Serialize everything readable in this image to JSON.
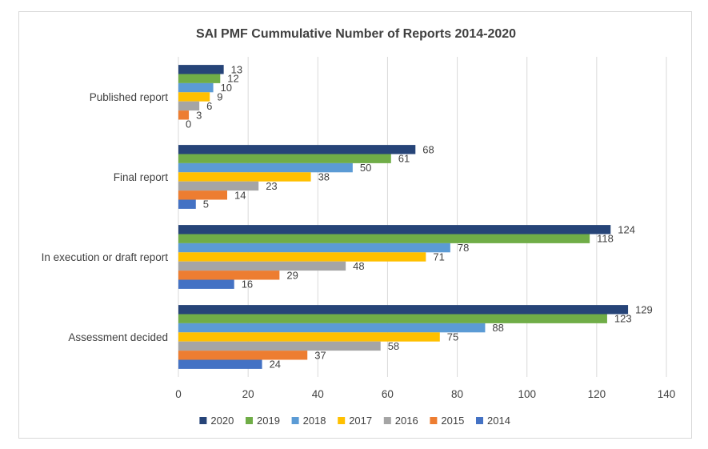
{
  "chart_data": {
    "type": "bar",
    "orientation": "horizontal",
    "title": "SAI PMF Cummulative Number of Reports 2014-2020",
    "categories": [
      "Published report",
      "Final report",
      "In execution or draft report",
      "Assessment decided"
    ],
    "series": [
      {
        "name": "2020",
        "color": "#264478",
        "values": [
          13,
          68,
          124,
          129
        ]
      },
      {
        "name": "2019",
        "color": "#70ad47",
        "values": [
          12,
          61,
          118,
          123
        ]
      },
      {
        "name": "2018",
        "color": "#5b9bd5",
        "values": [
          10,
          50,
          78,
          88
        ]
      },
      {
        "name": "2017",
        "color": "#ffc000",
        "values": [
          9,
          38,
          71,
          75
        ]
      },
      {
        "name": "2016",
        "color": "#a5a5a5",
        "values": [
          6,
          23,
          48,
          58
        ]
      },
      {
        "name": "2015",
        "color": "#ed7d31",
        "values": [
          3,
          14,
          29,
          37
        ]
      },
      {
        "name": "2014",
        "color": "#4472c4",
        "values": [
          0,
          5,
          16,
          24
        ]
      }
    ],
    "xlim": [
      0,
      140
    ],
    "xticks": [
      0,
      20,
      40,
      60,
      80,
      100,
      120,
      140
    ],
    "grid": true,
    "legend": "bottom",
    "xlabel": "",
    "ylabel": ""
  }
}
